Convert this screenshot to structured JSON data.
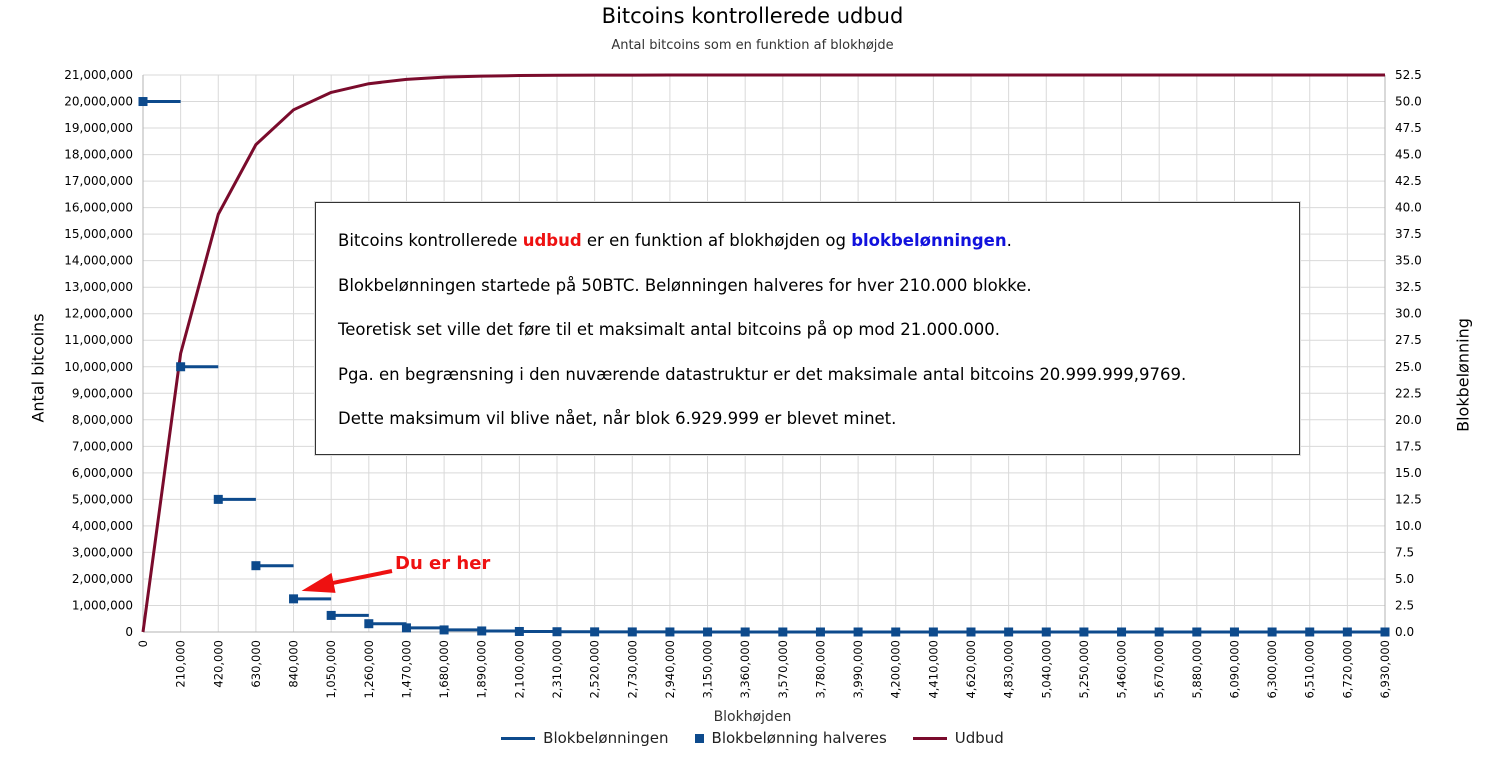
{
  "chart_data": {
    "type": "line",
    "title": "Bitcoins kontrollerede udbud",
    "subtitle": "Antal bitcoins som en funktion af blokhøjde",
    "xlabel": "Blokhøjden",
    "ylabel_left": "Antal bitcoins",
    "ylabel_right": "Blokbelønning",
    "xlim": [
      0,
      6930000
    ],
    "ylim_left": [
      0,
      21000000
    ],
    "ylim_right": [
      0,
      52.5
    ],
    "x_ticks": [
      "0",
      "210,000",
      "420,000",
      "630,000",
      "840,000",
      "1,050,000",
      "1,260,000",
      "1,470,000",
      "1,680,000",
      "1,890,000",
      "2,100,000",
      "2,310,000",
      "2,520,000",
      "2,730,000",
      "2,940,000",
      "3,150,000",
      "3,360,000",
      "3,570,000",
      "3,780,000",
      "3,990,000",
      "4,200,000",
      "4,410,000",
      "4,620,000",
      "4,830,000",
      "5,040,000",
      "5,250,000",
      "5,460,000",
      "5,670,000",
      "5,880,000",
      "6,090,000",
      "6,300,000",
      "6,510,000",
      "6,720,000",
      "6,930,000"
    ],
    "y_left_ticks": [
      "0",
      "1,000,000",
      "2,000,000",
      "3,000,000",
      "4,000,000",
      "5,000,000",
      "6,000,000",
      "7,000,000",
      "8,000,000",
      "9,000,000",
      "10,000,000",
      "11,000,000",
      "12,000,000",
      "13,000,000",
      "14,000,000",
      "15,000,000",
      "16,000,000",
      "17,000,000",
      "18,000,000",
      "19,000,000",
      "20,000,000",
      "21,000,000"
    ],
    "y_right_ticks": [
      "0.0",
      "2.5",
      "5.0",
      "7.5",
      "10.0",
      "12.5",
      "15.0",
      "17.5",
      "20.0",
      "22.5",
      "25.0",
      "27.5",
      "30.0",
      "32.5",
      "35.0",
      "37.5",
      "40.0",
      "42.5",
      "45.0",
      "47.5",
      "50.0",
      "52.5"
    ],
    "grid": true,
    "legend_position": "bottom",
    "series": [
      {
        "name": "Blokbelønningen",
        "axis": "right",
        "style": "step",
        "color": "#0d4a8c",
        "x": [
          0,
          210000,
          420000,
          630000,
          840000,
          1050000,
          1260000,
          1470000,
          1680000,
          1890000,
          2100000,
          2310000,
          2520000,
          2730000,
          2940000,
          3150000,
          3360000,
          3570000,
          3780000,
          3990000,
          4200000,
          4410000,
          4620000,
          4830000,
          5040000,
          5250000,
          5460000,
          5670000,
          5880000,
          6090000,
          6300000,
          6510000,
          6720000
        ],
        "values": [
          50,
          25,
          12.5,
          6.25,
          3.125,
          1.5625,
          0.78125,
          0.390625,
          0.1953125,
          0.09765625,
          0.048828125,
          0.0244140625,
          0.01220703125,
          0.006103515625,
          0.0030517578125,
          0.00152587890625,
          0.000762939453125,
          0.0003814697265625,
          0.00019073486328125,
          9.5367431640625e-05,
          4.76837158203125e-05,
          2.384185791015625e-05,
          1.1920928955078125e-05,
          5.960464477539062e-06,
          2.980232238769531e-06,
          1.490116119384766e-06,
          7.45058059692383e-07,
          3.72529029846191e-07,
          1.86264514923096e-07,
          9.3132257461548e-08,
          4.6566128730774e-08,
          2.3283064365387e-08,
          1.1641532182693e-08
        ]
      },
      {
        "name": "Blokbelønning halveres",
        "axis": "right",
        "style": "marker",
        "color": "#0d4a8c",
        "x": [
          0,
          210000,
          420000,
          630000,
          840000,
          1050000,
          1260000,
          1470000,
          1680000,
          1890000,
          2100000,
          2310000,
          2520000,
          2730000,
          2940000,
          3150000,
          3360000,
          3570000,
          3780000,
          3990000,
          4200000,
          4410000,
          4620000,
          4830000,
          5040000,
          5250000,
          5460000,
          5670000,
          5880000,
          6090000,
          6300000,
          6510000,
          6720000,
          6930000
        ],
        "values": [
          50,
          25,
          12.5,
          6.25,
          3.125,
          1.5625,
          0.78125,
          0.390625,
          0.1953125,
          0.09765625,
          0.048828125,
          0.0244140625,
          0.01220703125,
          0.006103515625,
          0.0030517578125,
          0.00152587890625,
          0.000762939453125,
          0.0003814697265625,
          0.00019073486328125,
          9.5367431640625e-05,
          4.76837158203125e-05,
          2.384185791015625e-05,
          1.1920928955078125e-05,
          5.960464477539062e-06,
          2.980232238769531e-06,
          1.490116119384766e-06,
          7.45058059692383e-07,
          3.72529029846191e-07,
          1.86264514923096e-07,
          9.3132257461548e-08,
          4.6566128730774e-08,
          2.3283064365387e-08,
          1.1641532182693e-08,
          0
        ]
      },
      {
        "name": "Udbud",
        "axis": "left",
        "style": "line",
        "color": "#7a0b2c",
        "x": [
          0,
          210000,
          420000,
          630000,
          840000,
          1050000,
          1260000,
          1470000,
          1680000,
          1890000,
          2100000,
          2310000,
          2520000,
          2730000,
          2940000,
          3150000,
          3360000,
          3570000,
          3780000,
          3990000,
          4200000,
          4410000,
          4620000,
          4830000,
          5040000,
          5250000,
          5460000,
          5670000,
          5880000,
          6090000,
          6300000,
          6510000,
          6720000,
          6930000
        ],
        "values": [
          0,
          10500000,
          15750000,
          18375000,
          19687500,
          20343750,
          20671875,
          20835937.5,
          20917968.75,
          20958984.38,
          20979492.19,
          20989746.09,
          20994873.05,
          20997436.52,
          20998718.26,
          20999359.13,
          20999679.57,
          20999839.78,
          20999919.89,
          20999959.95,
          20999979.97,
          20999989.99,
          20999994.99,
          20999997.5,
          20999998.75,
          20999999.37,
          20999999.69,
          20999999.84,
          20999999.92,
          20999999.96,
          20999999.98,
          20999999.99,
          20999999.995,
          20999999.9769
        ]
      }
    ]
  },
  "info_box": {
    "line1_pre": "Bitcoins kontrollerede ",
    "line1_udbud": "udbud",
    "line1_mid": " er en funktion af blokhøjden og ",
    "line1_blok": "blokbelønningen",
    "line1_end": ".",
    "line2": "Blokbelønningen startede på 50BTC. Belønningen halveres for hver 210.000 blokke.",
    "line3": "Teoretisk set ville det føre til et maksimalt antal bitcoins på op mod 21.000.000.",
    "line4": "Pga. en begrænsning i den nuværende datastruktur er det maksimale antal bitcoins 20.999.999,9769.",
    "line5": "Dette maksimum vil blive nået, når blok 6.929.999 er blevet minet."
  },
  "annotation": {
    "text": "Du er her",
    "color": "#ee1111",
    "x": 840000,
    "y_right": 3.125
  },
  "colors": {
    "reward": "#0d4a8c",
    "supply": "#7a0b2c",
    "grid": "#d9d9d9",
    "arrow": "#ee1111"
  }
}
